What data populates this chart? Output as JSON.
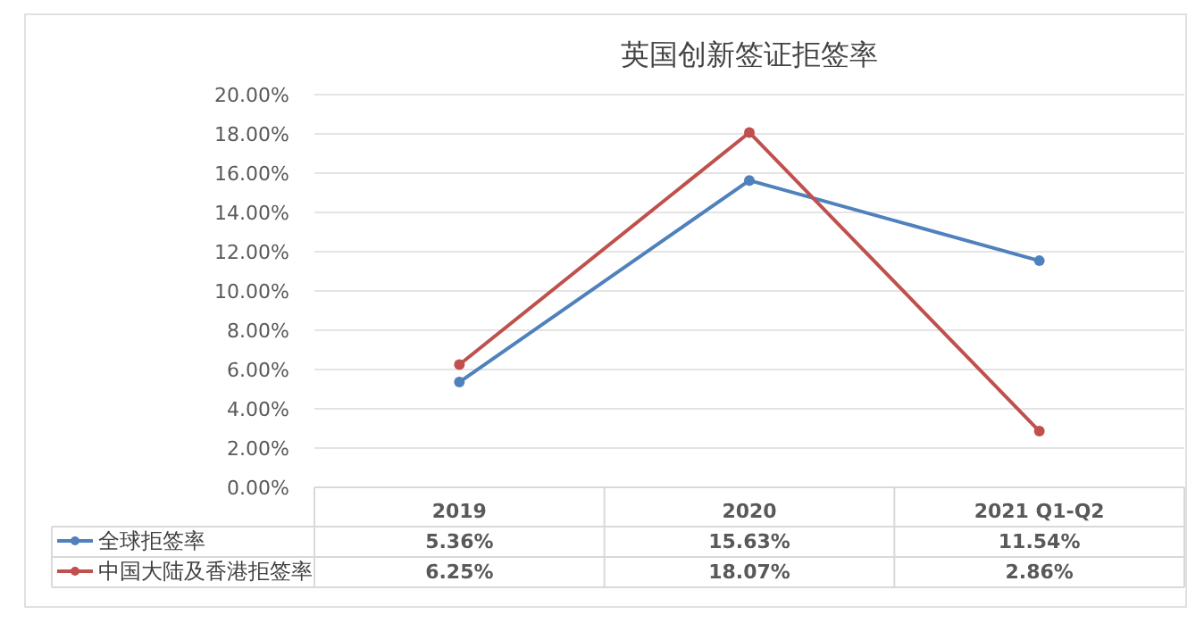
{
  "chart_data": {
    "type": "line",
    "title": "英国创新签证拒签率",
    "categories": [
      "2019",
      "2020",
      "2021 Q1-Q2"
    ],
    "series": [
      {
        "name": "全球拒签率",
        "color": "#4f81bd",
        "values": [
          5.36,
          15.63,
          11.54
        ],
        "value_labels": [
          "5.36%",
          "15.63%",
          "11.54%"
        ]
      },
      {
        "name": "中国大陆及香港拒签率",
        "color": "#c0504d",
        "values": [
          6.25,
          18.07,
          2.86
        ],
        "value_labels": [
          "6.25%",
          "18.07%",
          "2.86%"
        ]
      }
    ],
    "ylim": [
      0,
      20
    ],
    "yticks": [
      {
        "value": 0,
        "label": "0.00%"
      },
      {
        "value": 2,
        "label": "2.00%"
      },
      {
        "value": 4,
        "label": "4.00%"
      },
      {
        "value": 6,
        "label": "6.00%"
      },
      {
        "value": 8,
        "label": "8.00%"
      },
      {
        "value": 10,
        "label": "10.00%"
      },
      {
        "value": 12,
        "label": "12.00%"
      },
      {
        "value": 14,
        "label": "14.00%"
      },
      {
        "value": 16,
        "label": "16.00%"
      },
      {
        "value": 18,
        "label": "18.00%"
      },
      {
        "value": 20,
        "label": "20.00%"
      }
    ],
    "grid": "y",
    "legend": "bottom left",
    "marker": "circle",
    "line_style": "solid"
  }
}
